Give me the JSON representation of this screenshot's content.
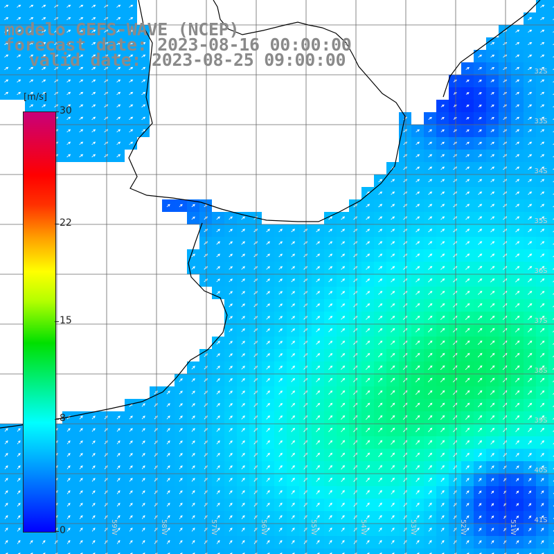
{
  "title": {
    "line1": "modelo GEFS-WAVE (NCEP)",
    "line2": "forecast date: 2023-08-16 00:00:00",
    "line3": "valid date: 2023-08-25 09:00:00"
  },
  "colorbar": {
    "unit": "[m/s]",
    "ticks": [
      "30",
      "22",
      "15",
      "8",
      "0"
    ],
    "tick_values": [
      30,
      22,
      15,
      8,
      0
    ]
  },
  "lat_labels": [
    "32S",
    "33S",
    "34S",
    "35S",
    "36S",
    "37S",
    "38S",
    "39S",
    "40S",
    "41S"
  ],
  "lon_labels": [
    "59W",
    "58W",
    "57W",
    "56W",
    "55W",
    "54W",
    "53W",
    "52W",
    "51W"
  ],
  "colors": {
    "background": "#ffffff",
    "grid": "#666666",
    "coast": "#000000",
    "title": "#8a8a8a",
    "arrow": "#ffffff"
  }
}
